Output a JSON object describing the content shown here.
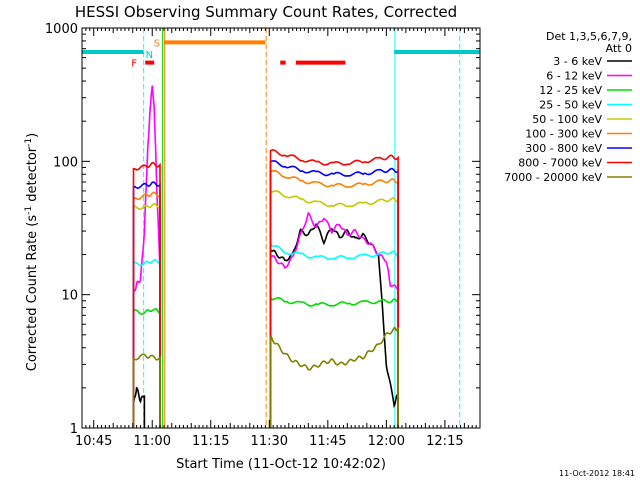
{
  "chart_data": {
    "type": "line",
    "title": "HESSI Observing Summary Count Rates, Corrected",
    "xlabel": "Start Time (11-Oct-12 10:42:02)",
    "ylabel": "Corrected Count Rate (s",
    "ylabel_sup1": "-1",
    "ylabel_mid": " detector",
    "ylabel_sup2": "-1",
    "ylabel_end": ")",
    "footer": "11-Oct-2012 18:41",
    "x_unit": "minutes since 10:42:02",
    "xlim": [
      0,
      102
    ],
    "ylim": [
      1,
      1000
    ],
    "yscale": "log",
    "x_ticks": [
      {
        "label": "10:45",
        "value": 3
      },
      {
        "label": "11:00",
        "value": 18
      },
      {
        "label": "11:15",
        "value": 33
      },
      {
        "label": "11:30",
        "value": 48
      },
      {
        "label": "11:45",
        "value": 63
      },
      {
        "label": "12:00",
        "value": 78
      },
      {
        "label": "12:15",
        "value": 93
      }
    ],
    "y_ticks": [
      {
        "label": "1",
        "value": 1
      },
      {
        "label": "10",
        "value": 10
      },
      {
        "label": "100",
        "value": 100
      },
      {
        "label": "1000",
        "value": 1000
      }
    ],
    "legend": {
      "placement": "right",
      "header": [
        "Det 1,3,5,6,7,9,",
        "Att 0"
      ]
    },
    "series": [
      {
        "name": "3 - 6 keV",
        "color": "#000000",
        "segments": [
          {
            "x": [
              13.2,
              14,
              15,
              16
            ],
            "y": [
              1.5,
              2.0,
              1.6,
              1.8
            ]
          },
          {
            "x": [
              48.3,
              50,
              52,
              54,
              56,
              58,
              60,
              62,
              64,
              66,
              68,
              70,
              72,
              74,
              76,
              78,
              80,
              81
            ],
            "y": [
              22,
              20,
              18,
              20,
              30,
              28,
              34,
              25,
              32,
              27,
              30,
              26,
              28,
              24,
              20,
              3,
              1.5,
              1.8
            ]
          }
        ]
      },
      {
        "name": "6 - 12 keV",
        "color": "#ff00ff",
        "segments": [
          {
            "x": [
              13.2,
              14,
              15,
              16,
              16.8,
              17.5,
              18,
              18.5,
              19.2,
              20
            ],
            "y": [
              10,
              12,
              13,
              30,
              120,
              250,
              380,
              250,
              60,
              15
            ]
          },
          {
            "x": [
              48.3,
              50,
              52,
              54,
              56,
              58,
              60,
              62,
              64,
              66,
              68,
              70,
              72,
              74,
              76,
              78,
              79,
              81
            ],
            "y": [
              20,
              18,
              16,
              19,
              28,
              40,
              32,
              38,
              30,
              34,
              28,
              30,
              26,
              24,
              20,
              18,
              12,
              11
            ]
          }
        ]
      },
      {
        "name": "12 - 25 keV",
        "color": "#00dd00",
        "segments": [
          {
            "x": [
              13.2,
              16,
              18,
              20
            ],
            "y": [
              7.5,
              7.3,
              7.8,
              7.4
            ]
          },
          {
            "x": [
              48.3,
              52,
              56,
              60,
              64,
              68,
              72,
              76,
              79,
              81
            ],
            "y": [
              9.5,
              9,
              8.6,
              8.4,
              8.5,
              8.6,
              8.7,
              8.9,
              9,
              9
            ]
          }
        ]
      },
      {
        "name": "25 - 50 keV",
        "color": "#00ffff",
        "segments": [
          {
            "x": [
              13.2,
              16,
              18,
              20
            ],
            "y": [
              17,
              17,
              18,
              17.5
            ]
          },
          {
            "x": [
              48.3,
              52,
              56,
              60,
              64,
              68,
              72,
              76,
              79,
              81
            ],
            "y": [
              24,
              21,
              20,
              19,
              19,
              19,
              19.5,
              20,
              21,
              20
            ]
          }
        ]
      },
      {
        "name": "50 - 100 keV",
        "color": "#c8c800",
        "segments": [
          {
            "x": [
              13.2,
              16,
              18,
              20
            ],
            "y": [
              45,
              45,
              47,
              46
            ]
          },
          {
            "x": [
              48.3,
              52,
              56,
              60,
              64,
              68,
              72,
              76,
              79,
              81
            ],
            "y": [
              60,
              56,
              52,
              49,
              47,
              47,
              48,
              50,
              52,
              51
            ]
          }
        ]
      },
      {
        "name": "100 - 300 keV",
        "color": "#ff8000",
        "segments": [
          {
            "x": [
              13.2,
              16,
              18,
              20
            ],
            "y": [
              52,
              55,
              57,
              56
            ]
          },
          {
            "x": [
              48.3,
              52,
              56,
              60,
              64,
              68,
              72,
              76,
              79,
              81
            ],
            "y": [
              85,
              78,
              72,
              68,
              66,
              66,
              67,
              70,
              72,
              71
            ]
          }
        ]
      },
      {
        "name": "300 - 800 keV",
        "color": "#0000ff",
        "segments": [
          {
            "x": [
              13.2,
              16,
              18,
              20
            ],
            "y": [
              64,
              66,
              68,
              67
            ]
          },
          {
            "x": [
              48.3,
              52,
              56,
              60,
              64,
              68,
              72,
              76,
              79,
              81
            ],
            "y": [
              100,
              93,
              86,
              82,
              80,
              80,
              81,
              84,
              86,
              85
            ]
          }
        ]
      },
      {
        "name": "800 - 7000 keV",
        "color": "#ff0000",
        "segments": [
          {
            "x": [
              13.2,
              16,
              18,
              20
            ],
            "y": [
              88,
              91,
              95,
              93
            ]
          },
          {
            "x": [
              48.3,
              52,
              56,
              60,
              64,
              68,
              72,
              76,
              79,
              81
            ],
            "y": [
              120,
              112,
              104,
              98,
              96,
              97,
              100,
              104,
              108,
              106
            ]
          }
        ]
      },
      {
        "name": "7000 - 20000 keV",
        "color": "#808000",
        "segments": [
          {
            "x": [
              13.2,
              16,
              18,
              20
            ],
            "y": [
              3.3,
              3.5,
              3.4,
              3.3
            ]
          },
          {
            "x": [
              48.3,
              50,
              52,
              54,
              56,
              58,
              60,
              62,
              64,
              66,
              68,
              70,
              72,
              74,
              76,
              78,
              80,
              81
            ],
            "y": [
              4.8,
              4.2,
              3.6,
              3.2,
              3.0,
              2.8,
              2.9,
              3.1,
              3.2,
              3.0,
              3.1,
              3.3,
              3.4,
              3.8,
              4.2,
              5.0,
              5.5,
              5.6
            ]
          }
        ]
      }
    ],
    "flag_bars": [
      {
        "label": "F",
        "color": "#ff0000",
        "y": 550,
        "segments": [
          [
            16.2,
            18.5
          ],
          [
            50.8,
            52.2
          ],
          [
            54.8,
            67.5
          ]
        ]
      },
      {
        "label": "N",
        "color": "#00c8c8",
        "y": 660,
        "segments": [
          [
            0,
            15.8
          ],
          [
            80,
            102
          ]
        ]
      },
      {
        "label": "S",
        "color": "#ff8000",
        "y": 780,
        "segments": [
          [
            21,
            47
          ]
        ]
      }
    ],
    "vertical_lines": [
      {
        "x": 15.8,
        "color": "#00ffff",
        "dashed": true
      },
      {
        "x": 20.6,
        "color": "#00dd00",
        "dashed": false
      },
      {
        "x": 21.2,
        "color": "#ff8000",
        "dashed": false
      },
      {
        "x": 47.2,
        "color": "#ff8000",
        "dashed": true
      },
      {
        "x": 80.2,
        "color": "#00ffff",
        "dashed": false
      },
      {
        "x": 96.8,
        "color": "#00ffff",
        "dashed": true
      }
    ]
  }
}
